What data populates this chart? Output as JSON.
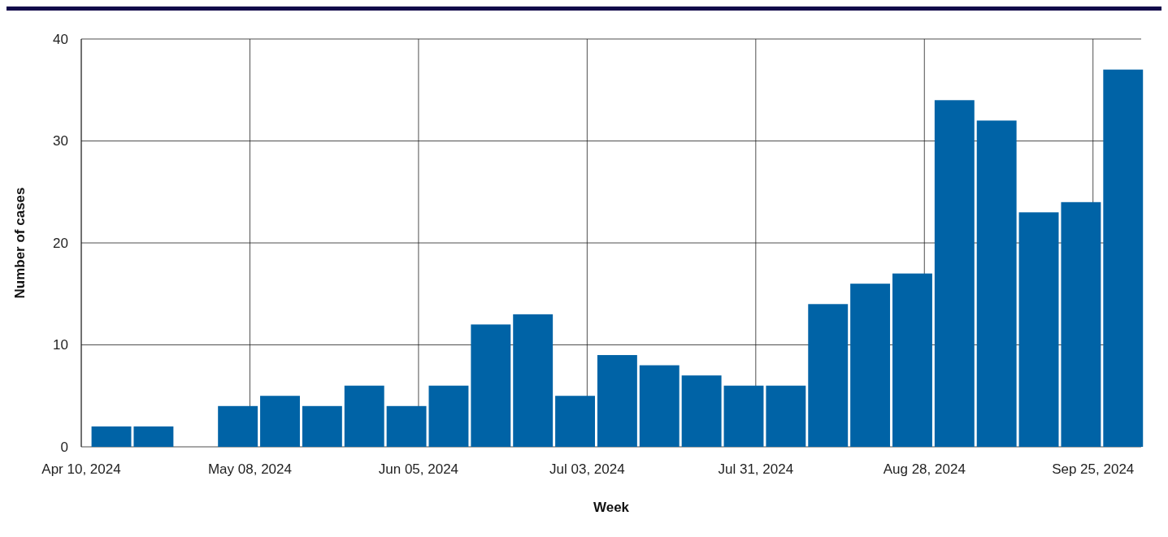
{
  "chart_data": {
    "type": "bar",
    "xlabel": "Week",
    "ylabel": "Number of cases",
    "x": [
      "2024-04-15",
      "2024-04-22",
      "2024-04-29",
      "2024-05-06",
      "2024-05-13",
      "2024-05-20",
      "2024-05-27",
      "2024-06-03",
      "2024-06-10",
      "2024-06-17",
      "2024-06-24",
      "2024-07-01",
      "2024-07-08",
      "2024-07-15",
      "2024-07-22",
      "2024-07-29",
      "2024-08-05",
      "2024-08-12",
      "2024-08-19",
      "2024-08-26",
      "2024-09-02",
      "2024-09-09",
      "2024-09-16",
      "2024-09-23",
      "2024-09-30"
    ],
    "values": [
      2,
      2,
      0,
      4,
      5,
      4,
      6,
      4,
      6,
      12,
      13,
      5,
      9,
      8,
      7,
      6,
      6,
      14,
      16,
      17,
      34,
      32,
      23,
      24,
      37
    ],
    "color": "#0063a6",
    "xlim": [
      "2024-04-10",
      "2024-10-03"
    ],
    "xticks": [
      {
        "value": "2024-04-10",
        "label": "Apr 10, 2024"
      },
      {
        "value": "2024-05-08",
        "label": "May 08, 2024"
      },
      {
        "value": "2024-06-05",
        "label": "Jun 05, 2024"
      },
      {
        "value": "2024-07-03",
        "label": "Jul 03, 2024"
      },
      {
        "value": "2024-07-31",
        "label": "Jul 31, 2024"
      },
      {
        "value": "2024-08-28",
        "label": "Aug 28, 2024"
      },
      {
        "value": "2024-09-25",
        "label": "Sep 25, 2024"
      }
    ],
    "ylim": [
      0,
      40
    ],
    "yticks": [
      0,
      10,
      20,
      30,
      40
    ],
    "grid": true
  }
}
